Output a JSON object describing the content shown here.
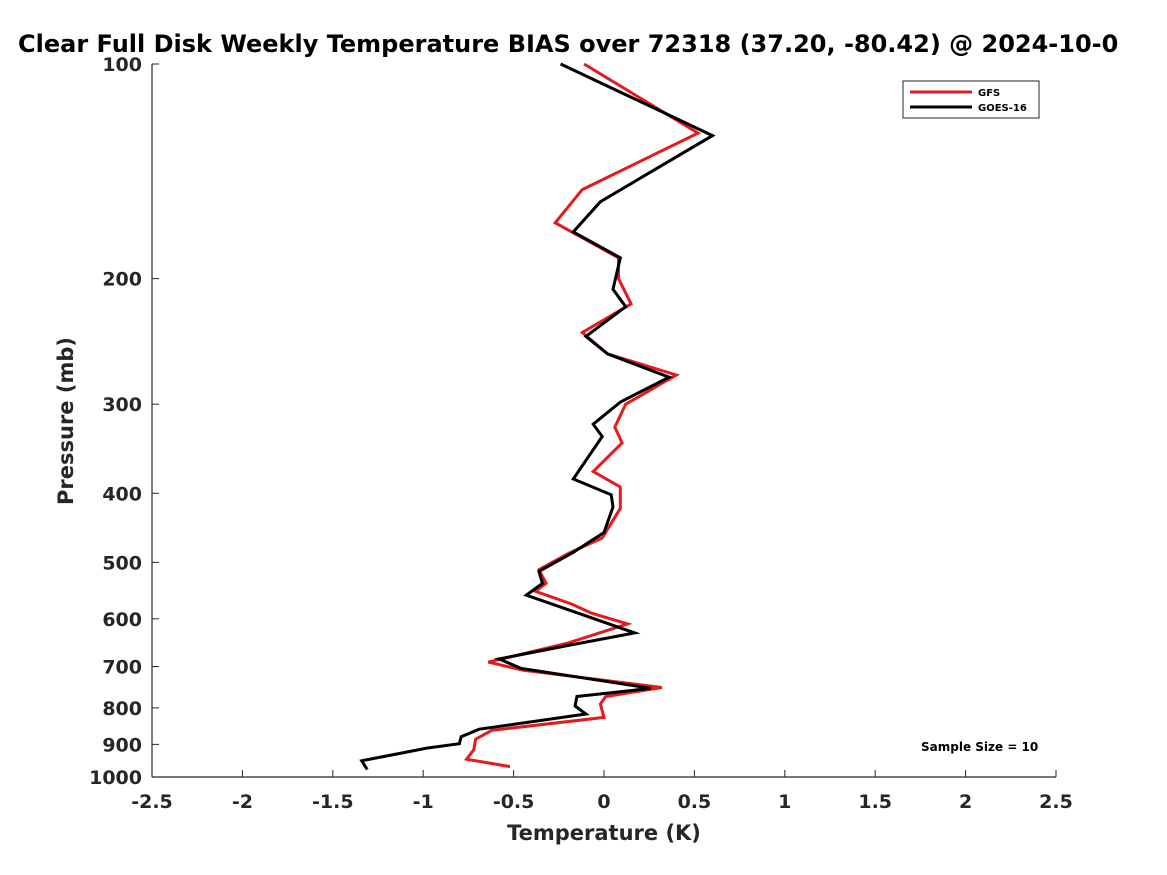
{
  "chart_data": {
    "type": "line",
    "title": "Clear Full Disk Weekly Temperature BIAS over 72318 (37.20, -80.42) @ 2024-10-0",
    "xlabel": "Temperature (K)",
    "ylabel": "Pressure (mb)",
    "xlim": [
      -2.5,
      2.5
    ],
    "ylim": [
      100,
      1000
    ],
    "y_scale": "log",
    "y_direction": "reversed",
    "x_ticks": [
      "-2.5",
      "-2",
      "-1.5",
      "-1",
      "-0.5",
      "0",
      "0.5",
      "1",
      "1.5",
      "2",
      "2.5"
    ],
    "y_ticks": [
      "100",
      "200",
      "300",
      "400",
      "500",
      "600",
      "700",
      "800",
      "900",
      "1000"
    ],
    "legend_position": "top-right",
    "annotation": "Sample Size = 10",
    "series": [
      {
        "name": "GFS",
        "color": "#e41a1c",
        "points": [
          [
            -0.11,
            100
          ],
          [
            0.52,
            125
          ],
          [
            -0.12,
            150
          ],
          [
            -0.27,
            167
          ],
          [
            0.08,
            187
          ],
          [
            0.08,
            200
          ],
          [
            0.15,
            217
          ],
          [
            -0.12,
            238
          ],
          [
            0.02,
            255
          ],
          [
            0.4,
            273
          ],
          [
            0.12,
            300
          ],
          [
            0.06,
            323
          ],
          [
            0.1,
            340
          ],
          [
            -0.06,
            373
          ],
          [
            0.09,
            392
          ],
          [
            0.09,
            420
          ],
          [
            -0.01,
            462
          ],
          [
            -0.19,
            485
          ],
          [
            -0.36,
            512
          ],
          [
            -0.32,
            535
          ],
          [
            -0.38,
            549
          ],
          [
            -0.18,
            572
          ],
          [
            -0.07,
            589
          ],
          [
            0.13,
            610
          ],
          [
            -0.2,
            649
          ],
          [
            -0.64,
            690
          ],
          [
            -0.45,
            708
          ],
          [
            0.32,
            749
          ],
          [
            0.01,
            771
          ],
          [
            -0.02,
            790
          ],
          [
            0.0,
            825
          ],
          [
            -0.62,
            860
          ],
          [
            -0.71,
            885
          ],
          [
            -0.72,
            916
          ],
          [
            -0.76,
            944
          ],
          [
            -0.52,
            967
          ]
        ]
      },
      {
        "name": "GOES-16",
        "color": "#000000",
        "points": [
          [
            -0.24,
            100
          ],
          [
            0.6,
            126
          ],
          [
            -0.02,
            156
          ],
          [
            -0.17,
            172
          ],
          [
            0.09,
            187
          ],
          [
            0.05,
            207
          ],
          [
            0.12,
            219
          ],
          [
            -0.1,
            241
          ],
          [
            0.02,
            255
          ],
          [
            0.36,
            275
          ],
          [
            0.09,
            298
          ],
          [
            -0.06,
            320
          ],
          [
            -0.01,
            333
          ],
          [
            -0.17,
            382
          ],
          [
            0.04,
            402
          ],
          [
            0.05,
            418
          ],
          [
            0.0,
            454
          ],
          [
            -0.17,
            484
          ],
          [
            -0.36,
            515
          ],
          [
            -0.34,
            535
          ],
          [
            -0.43,
            556
          ],
          [
            -0.21,
            581
          ],
          [
            0.17,
            628
          ],
          [
            -0.2,
            654
          ],
          [
            -0.58,
            683
          ],
          [
            -0.46,
            704
          ],
          [
            0.26,
            751
          ],
          [
            -0.15,
            771
          ],
          [
            -0.16,
            795
          ],
          [
            -0.1,
            816
          ],
          [
            -0.69,
            857
          ],
          [
            -0.79,
            878
          ],
          [
            -0.8,
            898
          ],
          [
            -0.98,
            911
          ],
          [
            -1.34,
            949
          ],
          [
            -1.31,
            976
          ]
        ]
      }
    ]
  }
}
